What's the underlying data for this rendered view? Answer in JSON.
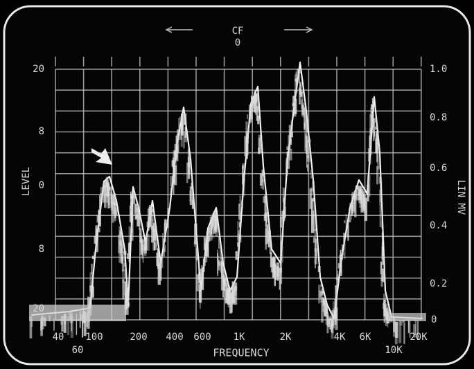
{
  "header": {
    "title": "CF",
    "center_value": "0"
  },
  "left_axis": {
    "title": "LEVEL",
    "labels": [
      "20",
      "8",
      "0",
      "8",
      "20"
    ]
  },
  "right_axis": {
    "title": "LIN MV",
    "labels": [
      "1.0",
      "0.8",
      "0.6",
      "0.4",
      "0.2",
      "0"
    ]
  },
  "bottom_axis": {
    "title": "FREQUENCY",
    "labels": [
      "40",
      "60",
      "100",
      "200",
      "400",
      "600",
      "1K",
      "2K",
      "4K",
      "6K",
      "10K",
      "20K"
    ]
  }
}
